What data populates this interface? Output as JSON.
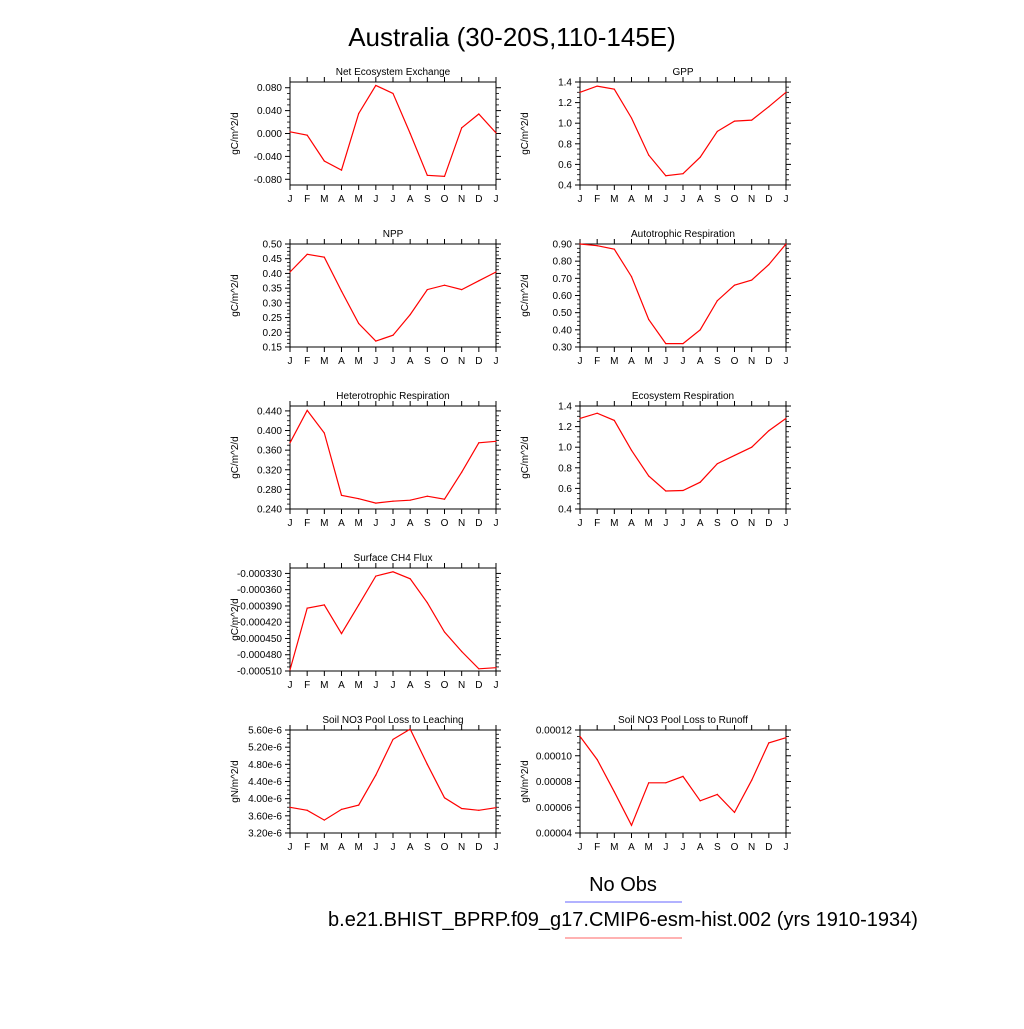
{
  "figure": {
    "title": "Australia (30-20S,110-145E)",
    "legend": {
      "obs_label": "No Obs",
      "obs_color": "#6666ff",
      "model_label": "b.e21.BHIST_BPRP.f09_g17.CMIP6-esm-hist.002 (yrs 1910-1934)",
      "model_color": "#ff6666"
    },
    "line_color": "#ff0000"
  },
  "chart_data": [
    {
      "type": "line",
      "title": "Net Ecosystem Exchange",
      "ylabel": "gC/m^2/d",
      "categories": [
        "J",
        "F",
        "M",
        "A",
        "M",
        "J",
        "J",
        "A",
        "S",
        "O",
        "N",
        "D",
        "J"
      ],
      "values": [
        0.003,
        -0.003,
        -0.048,
        -0.064,
        0.035,
        0.084,
        0.07,
        0.0,
        -0.073,
        -0.075,
        0.01,
        0.034,
        0.001
      ],
      "ylim": [
        -0.09,
        0.09
      ],
      "yticks": [
        -0.08,
        -0.04,
        0.0,
        0.04,
        0.08
      ],
      "ytick_labels": [
        "-0.080",
        "-0.040",
        "0.000",
        "0.040",
        "0.080"
      ]
    },
    {
      "type": "line",
      "title": "GPP",
      "ylabel": "gC/m^2/d",
      "categories": [
        "J",
        "F",
        "M",
        "A",
        "M",
        "J",
        "J",
        "A",
        "S",
        "O",
        "N",
        "D",
        "J"
      ],
      "values": [
        1.3,
        1.36,
        1.33,
        1.05,
        0.69,
        0.49,
        0.51,
        0.67,
        0.92,
        1.02,
        1.03,
        1.16,
        1.3
      ],
      "ylim": [
        0.4,
        1.4
      ],
      "yticks": [
        0.4,
        0.6,
        0.8,
        1.0,
        1.2,
        1.4
      ],
      "ytick_labels": [
        "0.4",
        "0.6",
        "0.8",
        "1.0",
        "1.2",
        "1.4"
      ]
    },
    {
      "type": "line",
      "title": "NPP",
      "ylabel": "gC/m^2/d",
      "categories": [
        "J",
        "F",
        "M",
        "A",
        "M",
        "J",
        "J",
        "A",
        "S",
        "O",
        "N",
        "D",
        "J"
      ],
      "values": [
        0.405,
        0.465,
        0.455,
        0.34,
        0.23,
        0.17,
        0.19,
        0.26,
        0.345,
        0.36,
        0.345,
        0.375,
        0.405
      ],
      "ylim": [
        0.15,
        0.5
      ],
      "yticks": [
        0.15,
        0.2,
        0.25,
        0.3,
        0.35,
        0.4,
        0.45,
        0.5
      ],
      "ytick_labels": [
        "0.15",
        "0.20",
        "0.25",
        "0.30",
        "0.35",
        "0.40",
        "0.45",
        "0.50"
      ]
    },
    {
      "type": "line",
      "title": "Autotrophic Respiration",
      "ylabel": "gC/m^2/d",
      "categories": [
        "J",
        "F",
        "M",
        "A",
        "M",
        "J",
        "J",
        "A",
        "S",
        "O",
        "N",
        "D",
        "J"
      ],
      "values": [
        0.9,
        0.89,
        0.87,
        0.71,
        0.46,
        0.32,
        0.32,
        0.4,
        0.57,
        0.66,
        0.69,
        0.78,
        0.9
      ],
      "ylim": [
        0.3,
        0.9
      ],
      "yticks": [
        0.3,
        0.4,
        0.5,
        0.6,
        0.7,
        0.8,
        0.9
      ],
      "ytick_labels": [
        "0.30",
        "0.40",
        "0.50",
        "0.60",
        "0.70",
        "0.80",
        "0.90"
      ]
    },
    {
      "type": "line",
      "title": "Heterotrophic Respiration",
      "ylabel": "gC/m^2/d",
      "categories": [
        "J",
        "F",
        "M",
        "A",
        "M",
        "J",
        "J",
        "A",
        "S",
        "O",
        "N",
        "D",
        "J"
      ],
      "values": [
        0.375,
        0.441,
        0.395,
        0.268,
        0.261,
        0.252,
        0.256,
        0.258,
        0.266,
        0.26,
        0.315,
        0.375,
        0.378
      ],
      "ylim": [
        0.24,
        0.45
      ],
      "yticks": [
        0.24,
        0.28,
        0.32,
        0.36,
        0.4,
        0.44
      ],
      "ytick_labels": [
        "0.240",
        "0.280",
        "0.320",
        "0.360",
        "0.400",
        "0.440"
      ]
    },
    {
      "type": "line",
      "title": "Ecosystem Respiration",
      "ylabel": "gC/m^2/d",
      "categories": [
        "J",
        "F",
        "M",
        "A",
        "M",
        "J",
        "J",
        "A",
        "S",
        "O",
        "N",
        "D",
        "J"
      ],
      "values": [
        1.28,
        1.33,
        1.26,
        0.97,
        0.72,
        0.575,
        0.58,
        0.66,
        0.84,
        0.92,
        1.0,
        1.16,
        1.28
      ],
      "ylim": [
        0.4,
        1.4
      ],
      "yticks": [
        0.4,
        0.6,
        0.8,
        1.0,
        1.2,
        1.4
      ],
      "ytick_labels": [
        "0.4",
        "0.6",
        "0.8",
        "1.0",
        "1.2",
        "1.4"
      ]
    },
    {
      "type": "line",
      "title": "Surface CH4 Flux",
      "ylabel": "gC/m^2/d",
      "categories": [
        "J",
        "F",
        "M",
        "A",
        "M",
        "J",
        "J",
        "A",
        "S",
        "O",
        "N",
        "D",
        "J"
      ],
      "values": [
        -0.000508,
        -0.000394,
        -0.000388,
        -0.000441,
        -0.000388,
        -0.000335,
        -0.000327,
        -0.00034,
        -0.000384,
        -0.000438,
        -0.000474,
        -0.000506,
        -0.000504
      ],
      "ylim": [
        -0.00051,
        -0.00032
      ],
      "yticks": [
        -0.00051,
        -0.00048,
        -0.00045,
        -0.00042,
        -0.00039,
        -0.00036,
        -0.00033
      ],
      "ytick_labels": [
        "-0.000510",
        "-0.000480",
        "-0.000450",
        "-0.000420",
        "-0.000390",
        "-0.000360",
        "-0.000330"
      ]
    },
    {
      "type": "line",
      "title": "Soil NO3 Pool Loss to Leaching",
      "ylabel": "gN/m^2/d",
      "categories": [
        "J",
        "F",
        "M",
        "A",
        "M",
        "J",
        "J",
        "A",
        "S",
        "O",
        "N",
        "D",
        "J"
      ],
      "values": [
        3.8e-06,
        3.73e-06,
        3.5e-06,
        3.75e-06,
        3.85e-06,
        4.55e-06,
        5.38e-06,
        5.62e-06,
        4.8e-06,
        4.02e-06,
        3.77e-06,
        3.73e-06,
        3.79e-06
      ],
      "ylim": [
        3.2e-06,
        5.6e-06
      ],
      "yticks": [
        3.2e-06,
        3.6e-06,
        4e-06,
        4.4e-06,
        4.8e-06,
        5.2e-06,
        5.6e-06
      ],
      "ytick_labels": [
        "3.20e-6",
        "3.60e-6",
        "4.00e-6",
        "4.40e-6",
        "4.80e-6",
        "5.20e-6",
        "5.60e-6"
      ]
    },
    {
      "type": "line",
      "title": "Soil NO3 Pool Loss to Runoff",
      "ylabel": "gN/m^2/d",
      "categories": [
        "J",
        "F",
        "M",
        "A",
        "M",
        "J",
        "J",
        "A",
        "S",
        "O",
        "N",
        "D",
        "J"
      ],
      "values": [
        0.000115,
        9.7e-05,
        7.2e-05,
        4.6e-05,
        7.9e-05,
        7.9e-05,
        8.4e-05,
        6.5e-05,
        7e-05,
        5.6e-05,
        8.1e-05,
        0.00011,
        0.000114
      ],
      "ylim": [
        4e-05,
        0.00012
      ],
      "yticks": [
        4e-05,
        6e-05,
        8e-05,
        0.0001,
        0.00012
      ],
      "ytick_labels": [
        "0.00004",
        "0.00006",
        "0.00008",
        "0.00010",
        "0.00012"
      ]
    }
  ]
}
